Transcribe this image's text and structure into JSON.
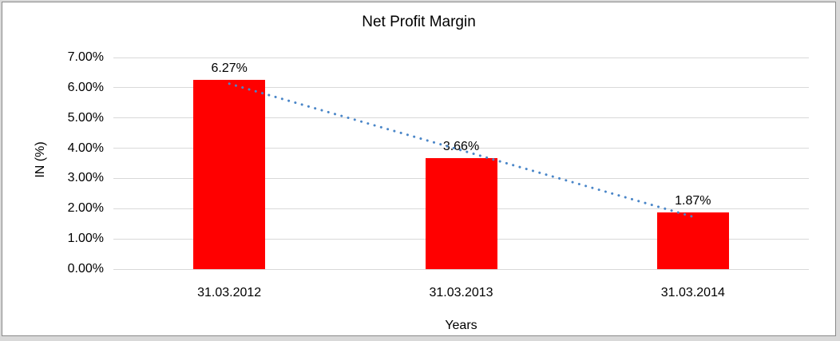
{
  "window": {
    "outer_background": "#d9d9d9",
    "frame_border_color": "#8a8a8a",
    "canvas_background": "#ffffff"
  },
  "chart_data": {
    "type": "bar",
    "title": "Net Profit Margin",
    "categories": [
      "31.03.2012",
      "31.03.2013",
      "31.03.2014"
    ],
    "values": [
      6.27,
      3.66,
      1.87
    ],
    "data_labels": [
      "6.27%",
      "3.66%",
      "1.87%"
    ],
    "xlabel": "Years",
    "ylabel": "IN (%)",
    "ylim": [
      0,
      7
    ],
    "ytick_step": 1,
    "ytick_labels": [
      "0.00%",
      "1.00%",
      "2.00%",
      "3.00%",
      "4.00%",
      "5.00%",
      "6.00%",
      "7.00%"
    ],
    "grid": true,
    "legend_position": "none",
    "trendline": {
      "type": "linear",
      "style": "dotted",
      "color": "#4a86c8"
    },
    "colors": {
      "bar": "#ff0000",
      "grid": "#d9d9d9",
      "text": "#000000"
    }
  }
}
